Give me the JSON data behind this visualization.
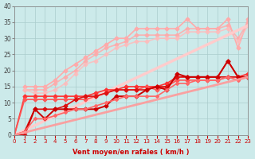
{
  "xlabel": "Vent moyen/en rafales ( km/h )",
  "background_color": "#cceaea",
  "grid_color": "#aacccc",
  "xlim": [
    0,
    23
  ],
  "ylim": [
    0,
    40
  ],
  "xticks": [
    0,
    1,
    2,
    3,
    4,
    5,
    6,
    7,
    8,
    9,
    10,
    11,
    12,
    13,
    14,
    15,
    16,
    17,
    18,
    19,
    20,
    21,
    22,
    23
  ],
  "yticks": [
    0,
    5,
    10,
    15,
    20,
    25,
    30,
    35,
    40
  ],
  "series": [
    {
      "x": [
        1,
        2,
        3,
        4,
        5,
        6,
        7,
        8,
        9,
        10,
        11,
        12,
        13,
        14,
        15,
        16,
        17,
        18,
        19,
        20,
        21,
        22,
        23
      ],
      "y": [
        15,
        15,
        15,
        17,
        20,
        22,
        24,
        26,
        28,
        30,
        30,
        33,
        33,
        33,
        33,
        33,
        36,
        33,
        33,
        33,
        36,
        27,
        36
      ],
      "color": "#ffaaaa",
      "lw": 1.2,
      "marker": "D",
      "ms": 2.5,
      "alpha": 1.0
    },
    {
      "x": [
        1,
        2,
        3,
        4,
        5,
        6,
        7,
        8,
        9,
        10,
        11,
        12,
        13,
        14,
        15,
        16,
        17,
        18,
        19,
        20,
        21,
        22,
        23
      ],
      "y": [
        14,
        14,
        14,
        16,
        18,
        20,
        23,
        25,
        27,
        28,
        29,
        31,
        31,
        31,
        31,
        31,
        33,
        33,
        33,
        33,
        34,
        30,
        35
      ],
      "color": "#ffaaaa",
      "lw": 1.2,
      "marker": "D",
      "ms": 2.5,
      "alpha": 0.85
    },
    {
      "x": [
        1,
        2,
        3,
        4,
        5,
        6,
        7,
        8,
        9,
        10,
        11,
        12,
        13,
        14,
        15,
        16,
        17,
        18,
        19,
        20,
        21,
        22,
        23
      ],
      "y": [
        14,
        13,
        13,
        14,
        16,
        19,
        22,
        23,
        25,
        27,
        28,
        29,
        29,
        30,
        30,
        30,
        32,
        32,
        32,
        32,
        33,
        29,
        34
      ],
      "color": "#ffbbbb",
      "lw": 1.2,
      "marker": "D",
      "ms": 2.5,
      "alpha": 0.8
    },
    {
      "x": [
        0,
        23
      ],
      "y": [
        0,
        34
      ],
      "color": "#ffcccc",
      "lw": 2.5,
      "marker": null,
      "ms": 0,
      "alpha": 1.0
    },
    {
      "x": [
        0,
        1,
        2,
        3,
        4,
        5,
        6,
        7,
        8,
        9,
        10,
        11,
        12,
        13,
        14,
        15,
        16,
        17,
        18,
        19,
        20,
        21,
        22,
        23
      ],
      "y": [
        0,
        12,
        12,
        12,
        12,
        12,
        12,
        12,
        13,
        14,
        14,
        15,
        15,
        15,
        15,
        16,
        18,
        18,
        18,
        18,
        18,
        23,
        18,
        19
      ],
      "color": "#ff3333",
      "lw": 1.2,
      "marker": "D",
      "ms": 2.5,
      "alpha": 1.0
    },
    {
      "x": [
        0,
        1,
        2,
        3,
        4,
        5,
        6,
        7,
        8,
        9,
        10,
        11,
        12,
        13,
        14,
        15,
        16,
        17,
        18,
        19,
        20,
        21,
        22,
        23
      ],
      "y": [
        0,
        11,
        11,
        11,
        11,
        11,
        11,
        11,
        12,
        13,
        14,
        14,
        14,
        15,
        14,
        15,
        17,
        17,
        17,
        17,
        17,
        18,
        18,
        18
      ],
      "color": "#ff5555",
      "lw": 1.2,
      "marker": "D",
      "ms": 2.5,
      "alpha": 1.0
    },
    {
      "x": [
        0,
        1,
        2,
        3,
        4,
        5,
        6,
        7,
        8,
        9,
        10,
        11,
        12,
        13,
        14,
        15,
        16,
        17,
        18,
        19,
        20,
        21,
        22,
        23
      ],
      "y": [
        0,
        1,
        8,
        8,
        8,
        9,
        11,
        12,
        12,
        13,
        14,
        14,
        14,
        14,
        15,
        15,
        18,
        18,
        18,
        18,
        18,
        18,
        18,
        18
      ],
      "color": "#dd1111",
      "lw": 1.2,
      "marker": "D",
      "ms": 2.5,
      "alpha": 1.0
    },
    {
      "x": [
        0,
        1,
        2,
        3,
        4,
        5,
        6,
        7,
        8,
        9,
        10,
        11,
        12,
        13,
        14,
        15,
        16,
        17,
        18,
        19,
        20,
        21,
        22,
        23
      ],
      "y": [
        0,
        0,
        8,
        5,
        8,
        8,
        8,
        8,
        8,
        9,
        12,
        12,
        12,
        14,
        15,
        14,
        19,
        18,
        18,
        18,
        18,
        23,
        18,
        18
      ],
      "color": "#cc0000",
      "lw": 1.4,
      "marker": "D",
      "ms": 2.5,
      "alpha": 1.0
    },
    {
      "x": [
        0,
        1,
        2,
        3,
        4,
        5,
        6,
        7,
        8,
        9,
        10,
        11,
        12,
        13,
        14,
        15,
        16,
        17,
        18,
        19,
        20,
        21,
        22,
        23
      ],
      "y": [
        0,
        1,
        5,
        5,
        6,
        7,
        8,
        8,
        9,
        10,
        11,
        12,
        12,
        12,
        12,
        14,
        16,
        16,
        17,
        17,
        17,
        18,
        17,
        18
      ],
      "color": "#ff6666",
      "lw": 1.2,
      "marker": "D",
      "ms": 2.0,
      "alpha": 1.0
    },
    {
      "x": [
        0,
        23
      ],
      "y": [
        0,
        18
      ],
      "color": "#ff9999",
      "lw": 2.0,
      "marker": null,
      "ms": 0,
      "alpha": 0.9
    }
  ]
}
